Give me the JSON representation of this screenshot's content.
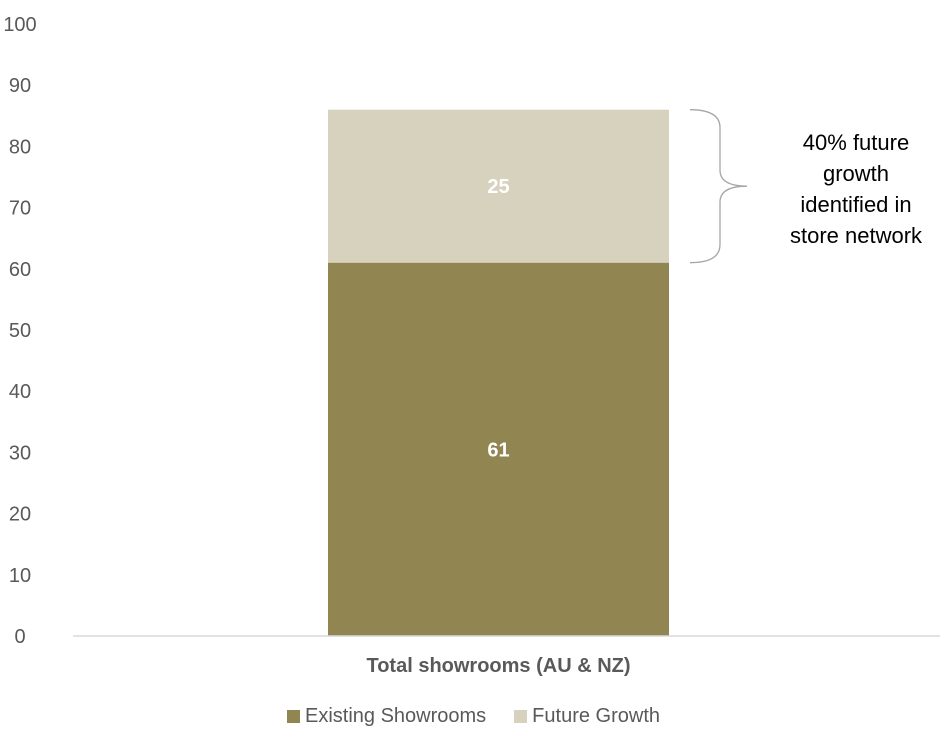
{
  "chart_data": {
    "type": "bar",
    "stacked": true,
    "categories": [
      "Total showrooms (AU & NZ)"
    ],
    "series": [
      {
        "name": "Existing Showrooms",
        "values": [
          61
        ],
        "color": "#918552"
      },
      {
        "name": "Future Growth",
        "values": [
          25
        ],
        "color": "#d6d2bd"
      }
    ],
    "ylim": [
      0,
      100
    ],
    "yticks": [
      0,
      10,
      20,
      30,
      40,
      50,
      60,
      70,
      80,
      90,
      100
    ],
    "data_labels": [
      "61",
      "25"
    ],
    "grid": false,
    "legend_position": "bottom",
    "annotation": {
      "lines": [
        "40% future",
        "growth",
        "identified in",
        "store network"
      ],
      "brace_spans_series": "Future Growth"
    },
    "colors": {
      "axis_text": "#595959",
      "axis_line": "#d9d9d9",
      "data_label": "#ffffff",
      "brace": "#a6a6a6"
    }
  }
}
